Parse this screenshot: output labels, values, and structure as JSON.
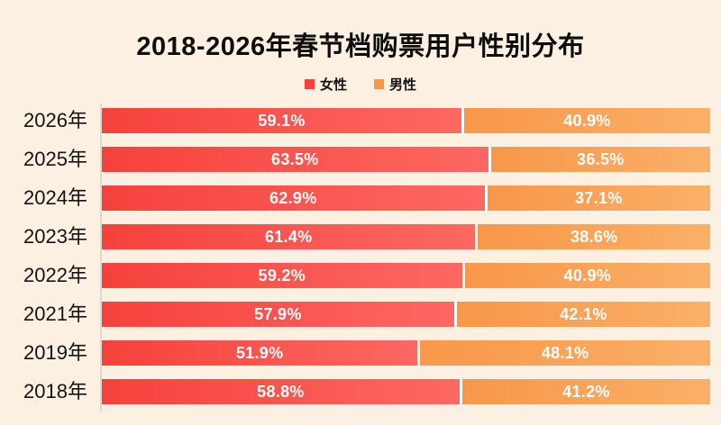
{
  "title": "2018-2026年春节档购票用户性别分布",
  "legend": {
    "female_label": "女性",
    "male_label": "男性"
  },
  "colors": {
    "background": "#fcf0e2",
    "title_text": "#0e0e0e",
    "axis_line": "#dcd8d2",
    "female_gradient_start": "#f6413c",
    "female_gradient_end": "#fd6862",
    "male_gradient_start": "#f79749",
    "male_gradient_end": "#fbb068",
    "value_text": "#ffffff",
    "separator": "#ffffff"
  },
  "chart_data": {
    "type": "bar",
    "orientation": "horizontal",
    "stacked": true,
    "title": "2018-2026年春节档购票用户性别分布",
    "xlabel": "",
    "ylabel": "",
    "xlim": [
      0,
      100
    ],
    "value_unit": "%",
    "grid": false,
    "legend_position": "top",
    "categories": [
      "2026年",
      "2025年",
      "2024年",
      "2023年",
      "2022年",
      "2021年",
      "2019年",
      "2018年"
    ],
    "series": [
      {
        "name": "女性",
        "color": "#f6413c",
        "values": [
          59.1,
          63.5,
          62.9,
          61.4,
          59.2,
          57.9,
          51.9,
          58.8
        ],
        "labels": [
          "59.1%",
          "63.5%",
          "62.9%",
          "61.4%",
          "59.2%",
          "57.9%",
          "51.9%",
          "58.8%"
        ]
      },
      {
        "name": "男性",
        "color": "#f79749",
        "values": [
          40.9,
          36.5,
          37.1,
          38.6,
          40.9,
          42.1,
          48.1,
          41.2
        ],
        "labels": [
          "40.9%",
          "36.5%",
          "37.1%",
          "38.6%",
          "40.9%",
          "42.1%",
          "48.1%",
          "41.2%"
        ]
      }
    ]
  }
}
